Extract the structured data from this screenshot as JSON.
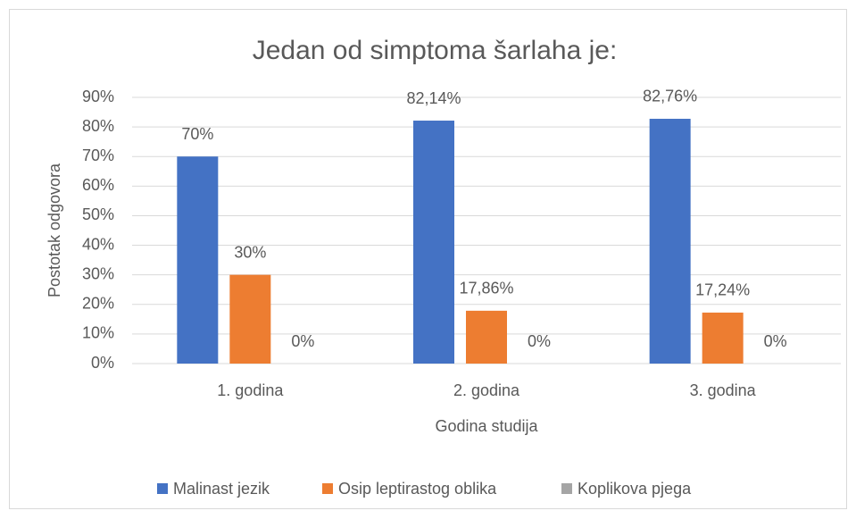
{
  "chart_data": {
    "type": "bar",
    "title": "Jedan od simptoma šarlaha je:",
    "x_label": "Godina studija",
    "y_label": "Postotak odgovora",
    "categories": [
      "1. godina",
      "2. godina",
      "3. godina"
    ],
    "series": [
      {
        "name": "Malinast jezik",
        "color": "#4472c4",
        "values": [
          70,
          82.14,
          82.76
        ],
        "value_labels": [
          "70%",
          "82,14%",
          "82,76%"
        ]
      },
      {
        "name": "Osip leptirastog oblika",
        "color": "#ed7d31",
        "values": [
          30,
          17.86,
          17.24
        ],
        "value_labels": [
          "30%",
          "17,86%",
          "17,24%"
        ]
      },
      {
        "name": "Koplikova pjega",
        "color": "#a5a5a5",
        "values": [
          0,
          0,
          0
        ],
        "value_labels": [
          "0%",
          "0%",
          "0%"
        ]
      }
    ],
    "ylim": [
      0,
      90
    ],
    "yticks": [
      {
        "value": 0,
        "label": "0%"
      },
      {
        "value": 10,
        "label": "10%"
      },
      {
        "value": 20,
        "label": "20%"
      },
      {
        "value": 30,
        "label": "30%"
      },
      {
        "value": 40,
        "label": "40%"
      },
      {
        "value": 50,
        "label": "50%"
      },
      {
        "value": 60,
        "label": "60%"
      },
      {
        "value": 70,
        "label": "70%"
      },
      {
        "value": 80,
        "label": "80%"
      },
      {
        "value": 90,
        "label": "90%"
      }
    ],
    "grid": true,
    "legend": "bottom"
  }
}
